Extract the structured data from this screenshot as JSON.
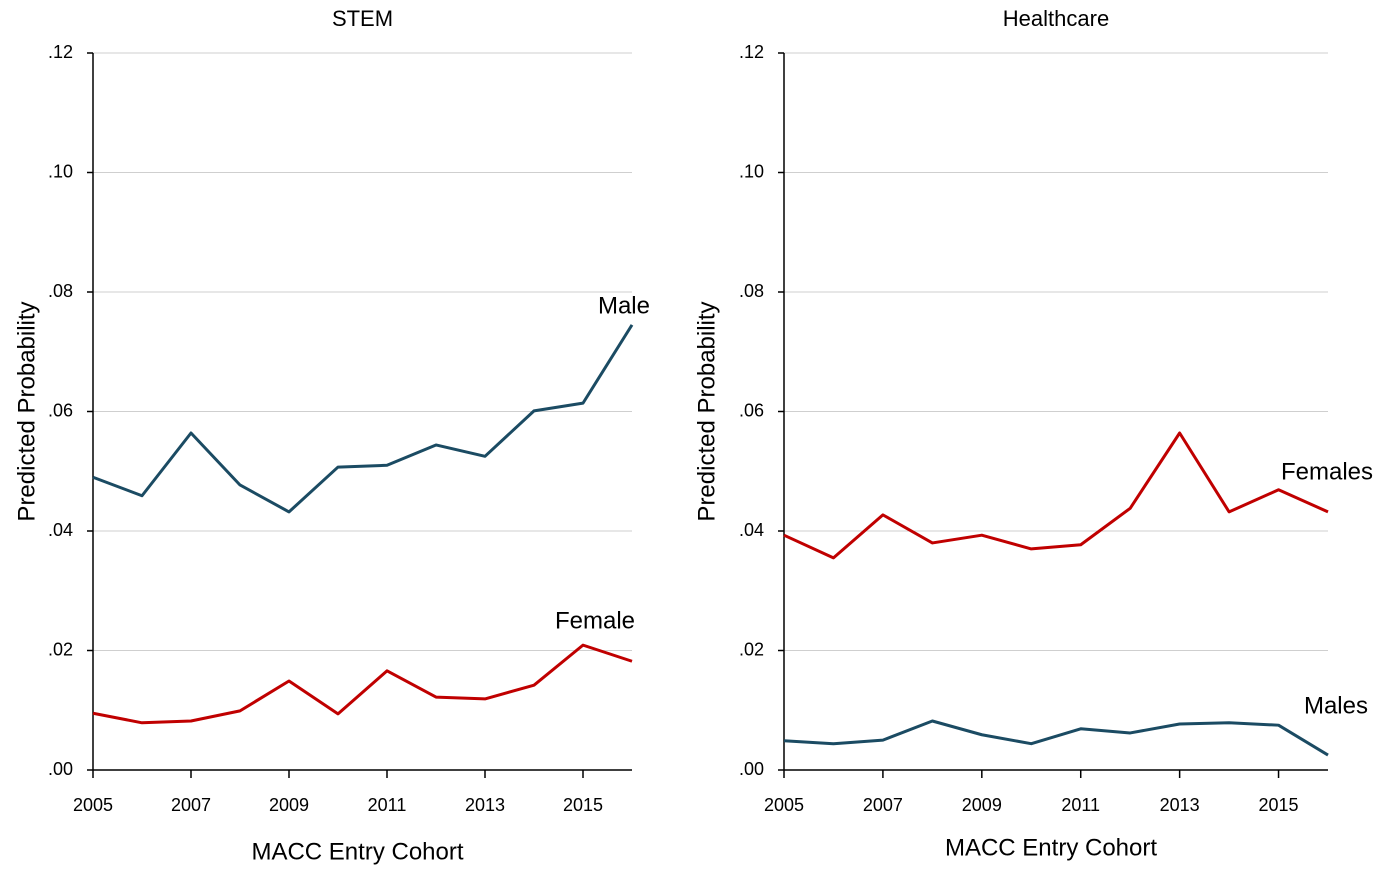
{
  "chart_data": [
    {
      "type": "line",
      "title": "STEM",
      "x_label": "MACC Entry Cohort",
      "y_label": "Predicted Probability",
      "x": [
        2005,
        2006,
        2007,
        2008,
        2009,
        2010,
        2011,
        2012,
        2013,
        2014,
        2015,
        2016
      ],
      "series": [
        {
          "name": "Male",
          "color": "#1b4b63",
          "values": [
            0.049,
            0.0459,
            0.0564,
            0.0477,
            0.0432,
            0.0507,
            0.051,
            0.0544,
            0.0525,
            0.0601,
            0.0614,
            0.0745
          ]
        },
        {
          "name": "Female",
          "color": "#c00000",
          "values": [
            0.0095,
            0.0079,
            0.0082,
            0.0099,
            0.0149,
            0.0094,
            0.0166,
            0.0122,
            0.0119,
            0.0142,
            0.0209,
            0.0182
          ]
        }
      ],
      "xlim": [
        2005,
        2016
      ],
      "xticks": [
        2005,
        2007,
        2009,
        2011,
        2013,
        2015
      ],
      "ylim": [
        0,
        0.12
      ],
      "yticks": [
        {
          "value": 0,
          "label": ".00"
        },
        {
          "value": 0.02,
          "label": ".02"
        },
        {
          "value": 0.04,
          "label": ".04"
        },
        {
          "value": 0.06,
          "label": ".06"
        },
        {
          "value": 0.08,
          "label": ".08"
        },
        {
          "value": 0.1,
          "label": ".10"
        },
        {
          "value": 0.12,
          "label": ".12"
        }
      ],
      "grid": true
    },
    {
      "type": "line",
      "title": "Healthcare",
      "x_label": "MACC Entry Cohort",
      "y_label": "Predicted Probability",
      "x": [
        2005,
        2006,
        2007,
        2008,
        2009,
        2010,
        2011,
        2012,
        2013,
        2014,
        2015,
        2016
      ],
      "series": [
        {
          "name": "Females",
          "color": "#c00000",
          "values": [
            0.0393,
            0.0355,
            0.0427,
            0.038,
            0.0393,
            0.037,
            0.0377,
            0.0438,
            0.0564,
            0.0432,
            0.0469,
            0.0432
          ]
        },
        {
          "name": "Males",
          "color": "#1b4b63",
          "values": [
            0.0049,
            0.0044,
            0.005,
            0.0082,
            0.0059,
            0.0044,
            0.0069,
            0.0062,
            0.0077,
            0.0079,
            0.0075,
            0.0025
          ]
        }
      ],
      "xlim": [
        2005,
        2016
      ],
      "xticks": [
        2005,
        2007,
        2009,
        2011,
        2013,
        2015
      ],
      "ylim": [
        0,
        0.12
      ],
      "yticks": [
        {
          "value": 0,
          "label": ".00"
        },
        {
          "value": 0.02,
          "label": ".02"
        },
        {
          "value": 0.04,
          "label": ".04"
        },
        {
          "value": 0.06,
          "label": ".06"
        },
        {
          "value": 0.08,
          "label": ".08"
        },
        {
          "value": 0.1,
          "label": ".10"
        },
        {
          "value": 0.12,
          "label": ".12"
        }
      ],
      "grid": true
    }
  ]
}
